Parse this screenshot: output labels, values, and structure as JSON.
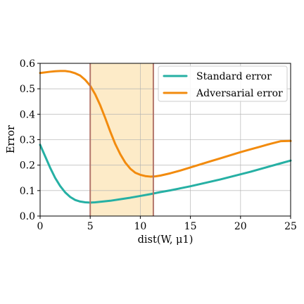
{
  "chart_data": {
    "type": "line",
    "xlabel": "dist(W, μ1)",
    "ylabel": "Error",
    "xlim": [
      0,
      25
    ],
    "ylim": [
      0,
      0.6
    ],
    "x_ticks": [
      "0",
      "5",
      "10",
      "15",
      "20",
      "25"
    ],
    "y_ticks": [
      "0.0",
      "0.1",
      "0.2",
      "0.3",
      "0.4",
      "0.5",
      "0.6"
    ],
    "grid": true,
    "legend_position": "top-right",
    "highlight_region": {
      "x_start": 5.0,
      "x_end": 11.3,
      "color": "#fdebc8",
      "edge_color": "#b3766b"
    },
    "series": [
      {
        "name": "Standard error",
        "color": "#26b0a4",
        "x": [
          0,
          0.5,
          1,
          1.5,
          2,
          2.5,
          3,
          3.5,
          4,
          4.5,
          5,
          5.5,
          6,
          7,
          8,
          9,
          10,
          11,
          12,
          13,
          14,
          15,
          16,
          17,
          18,
          19,
          20,
          21,
          22,
          23,
          24,
          25
        ],
        "y": [
          0.28,
          0.235,
          0.19,
          0.15,
          0.118,
          0.093,
          0.075,
          0.063,
          0.057,
          0.054,
          0.053,
          0.054,
          0.056,
          0.06,
          0.066,
          0.072,
          0.079,
          0.086,
          0.094,
          0.101,
          0.109,
          0.117,
          0.126,
          0.135,
          0.144,
          0.154,
          0.164,
          0.174,
          0.185,
          0.196,
          0.207,
          0.218
        ]
      },
      {
        "name": "Adversarial error",
        "color": "#f28b0e",
        "x": [
          0,
          1,
          1.5,
          2,
          2.5,
          3,
          3.5,
          4,
          4.5,
          5,
          5.5,
          6,
          6.5,
          7,
          7.5,
          8,
          8.5,
          9,
          9.5,
          10,
          10.5,
          11,
          11.5,
          12,
          13,
          14,
          15,
          16,
          17,
          18,
          19,
          20,
          21,
          22,
          23,
          24,
          25
        ],
        "y": [
          0.562,
          0.567,
          0.569,
          0.57,
          0.57,
          0.567,
          0.561,
          0.552,
          0.535,
          0.512,
          0.478,
          0.435,
          0.385,
          0.332,
          0.283,
          0.243,
          0.21,
          0.186,
          0.17,
          0.162,
          0.157,
          0.155,
          0.156,
          0.159,
          0.168,
          0.179,
          0.191,
          0.203,
          0.215,
          0.227,
          0.239,
          0.251,
          0.262,
          0.273,
          0.284,
          0.294,
          0.295
        ]
      }
    ]
  }
}
